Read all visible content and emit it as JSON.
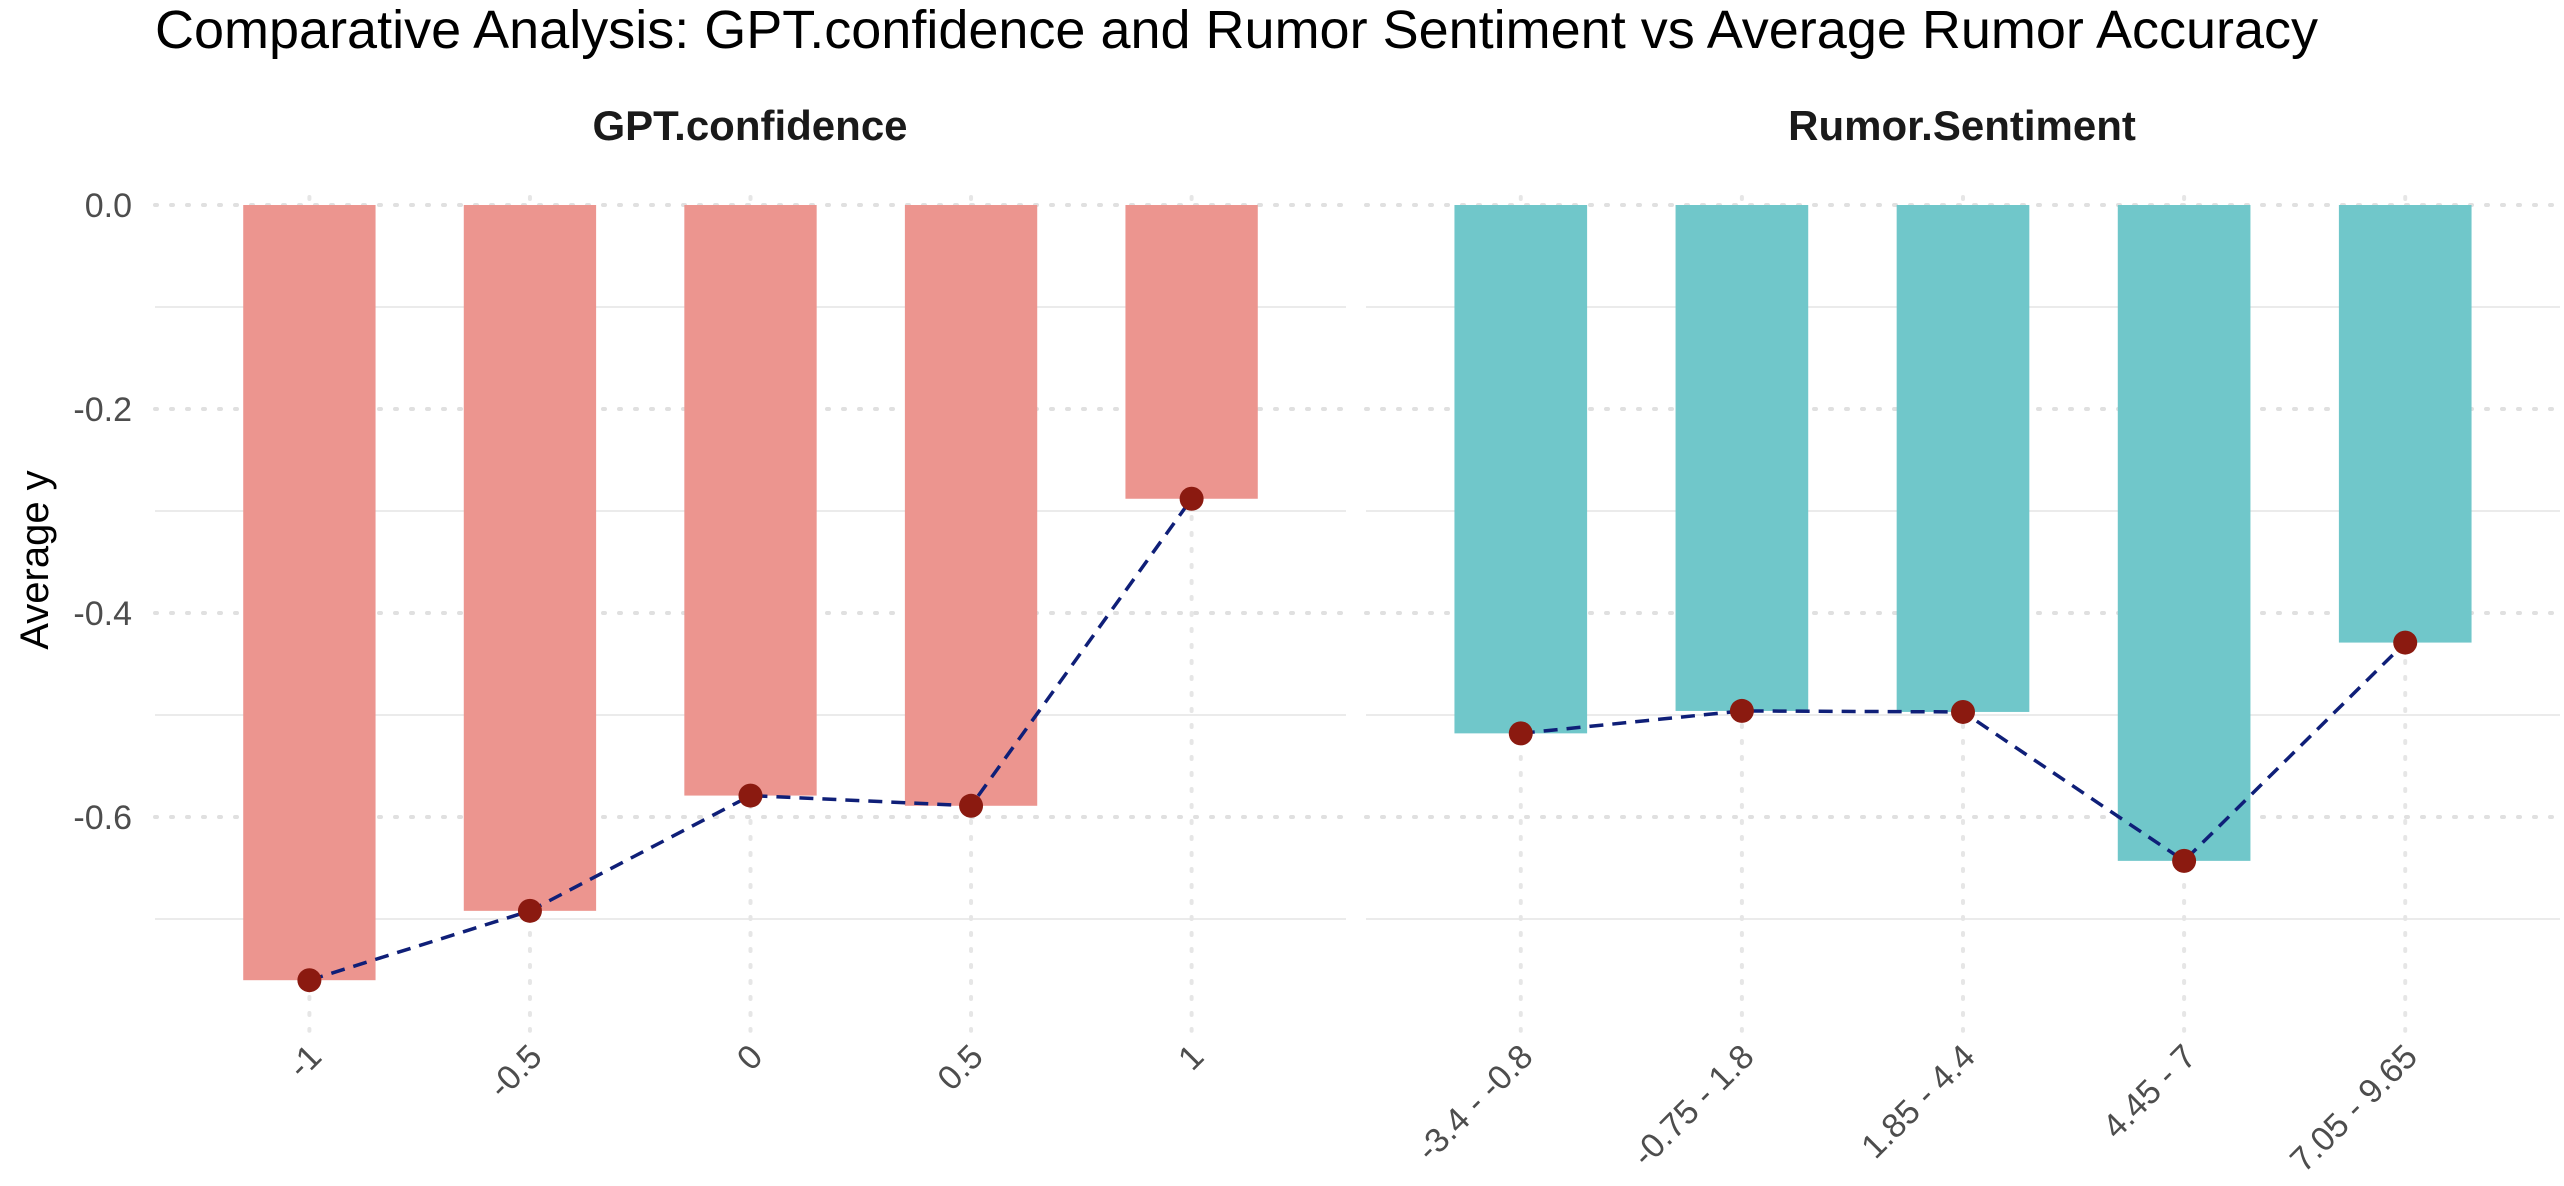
{
  "title": "Comparative Analysis: GPT.confidence and Rumor Sentiment vs Average Rumor Accuracy",
  "ylabel": "Average y",
  "y_tick_labels": [
    "0.0",
    "-0.2",
    "-0.4",
    "-0.6"
  ],
  "colors": {
    "gpt_bar": "#ec958f",
    "sentiment_bar": "#70c7ca",
    "point": "#8b1a10",
    "line": "#0f1f78",
    "grid": "#ebebeb"
  },
  "chart_data": [
    {
      "type": "bar",
      "facet": "GPT.confidence",
      "categories": [
        "-1",
        "-0.5",
        "0",
        "0.5",
        "1"
      ],
      "values": [
        -0.76,
        -0.692,
        -0.579,
        -0.589,
        -0.288
      ],
      "ylim": [
        -0.79,
        0.0
      ],
      "overlay": "dashed line with points"
    },
    {
      "type": "bar",
      "facet": "Rumor.Sentiment",
      "categories": [
        "-3.4 - -0.8",
        "-0.75 - 1.8",
        "1.85 - 4.4",
        "4.45 - 7",
        "7.05 - 9.65"
      ],
      "values": [
        -0.518,
        -0.496,
        -0.497,
        -0.643,
        -0.429
      ],
      "ylim": [
        -0.79,
        0.0
      ],
      "overlay": "dashed line with points"
    }
  ]
}
